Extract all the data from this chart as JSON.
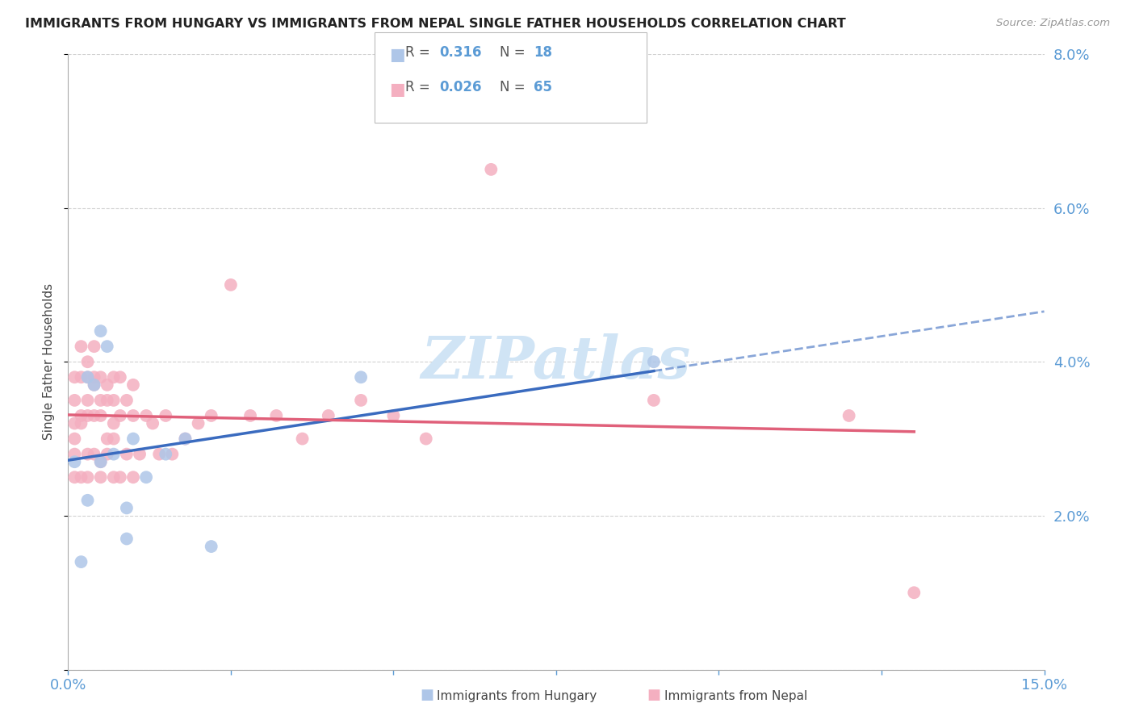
{
  "title": "IMMIGRANTS FROM HUNGARY VS IMMIGRANTS FROM NEPAL SINGLE FATHER HOUSEHOLDS CORRELATION CHART",
  "source": "Source: ZipAtlas.com",
  "ylabel": "Single Father Households",
  "legend_hungary": "Immigrants from Hungary",
  "legend_nepal": "Immigrants from Nepal",
  "hungary_R": 0.316,
  "hungary_N": 18,
  "nepal_R": 0.026,
  "nepal_N": 65,
  "xlim": [
    0.0,
    0.15
  ],
  "ylim": [
    0.0,
    0.08
  ],
  "hungary_color": "#aec6e8",
  "nepal_color": "#f4afc0",
  "hungary_line_color": "#3a6bbf",
  "nepal_line_color": "#e0607a",
  "background_color": "#ffffff",
  "grid_color": "#cccccc",
  "axis_tick_color": "#5b9bd5",
  "watermark": "ZIPatlas",
  "watermark_color": "#d0e4f5",
  "hungary_x": [
    0.001,
    0.002,
    0.003,
    0.003,
    0.004,
    0.005,
    0.005,
    0.006,
    0.007,
    0.009,
    0.009,
    0.01,
    0.012,
    0.015,
    0.018,
    0.022,
    0.045,
    0.09
  ],
  "hungary_y": [
    0.027,
    0.014,
    0.038,
    0.022,
    0.037,
    0.044,
    0.027,
    0.042,
    0.028,
    0.021,
    0.017,
    0.03,
    0.025,
    0.028,
    0.03,
    0.016,
    0.038,
    0.04
  ],
  "nepal_x": [
    0.001,
    0.001,
    0.001,
    0.001,
    0.001,
    0.001,
    0.002,
    0.002,
    0.002,
    0.002,
    0.002,
    0.003,
    0.003,
    0.003,
    0.003,
    0.003,
    0.003,
    0.004,
    0.004,
    0.004,
    0.004,
    0.004,
    0.005,
    0.005,
    0.005,
    0.005,
    0.005,
    0.006,
    0.006,
    0.006,
    0.006,
    0.007,
    0.007,
    0.007,
    0.007,
    0.007,
    0.008,
    0.008,
    0.008,
    0.009,
    0.009,
    0.01,
    0.01,
    0.01,
    0.011,
    0.012,
    0.013,
    0.014,
    0.015,
    0.016,
    0.018,
    0.02,
    0.022,
    0.025,
    0.028,
    0.032,
    0.036,
    0.04,
    0.045,
    0.05,
    0.055,
    0.065,
    0.09,
    0.12,
    0.13
  ],
  "nepal_y": [
    0.03,
    0.035,
    0.038,
    0.025,
    0.028,
    0.032,
    0.033,
    0.038,
    0.032,
    0.042,
    0.025,
    0.038,
    0.035,
    0.033,
    0.04,
    0.028,
    0.025,
    0.042,
    0.038,
    0.033,
    0.028,
    0.037,
    0.038,
    0.035,
    0.033,
    0.027,
    0.025,
    0.037,
    0.035,
    0.03,
    0.028,
    0.038,
    0.035,
    0.032,
    0.03,
    0.025,
    0.038,
    0.033,
    0.025,
    0.035,
    0.028,
    0.037,
    0.033,
    0.025,
    0.028,
    0.033,
    0.032,
    0.028,
    0.033,
    0.028,
    0.03,
    0.032,
    0.033,
    0.05,
    0.033,
    0.033,
    0.03,
    0.033,
    0.035,
    0.033,
    0.03,
    0.065,
    0.035,
    0.033,
    0.01
  ]
}
